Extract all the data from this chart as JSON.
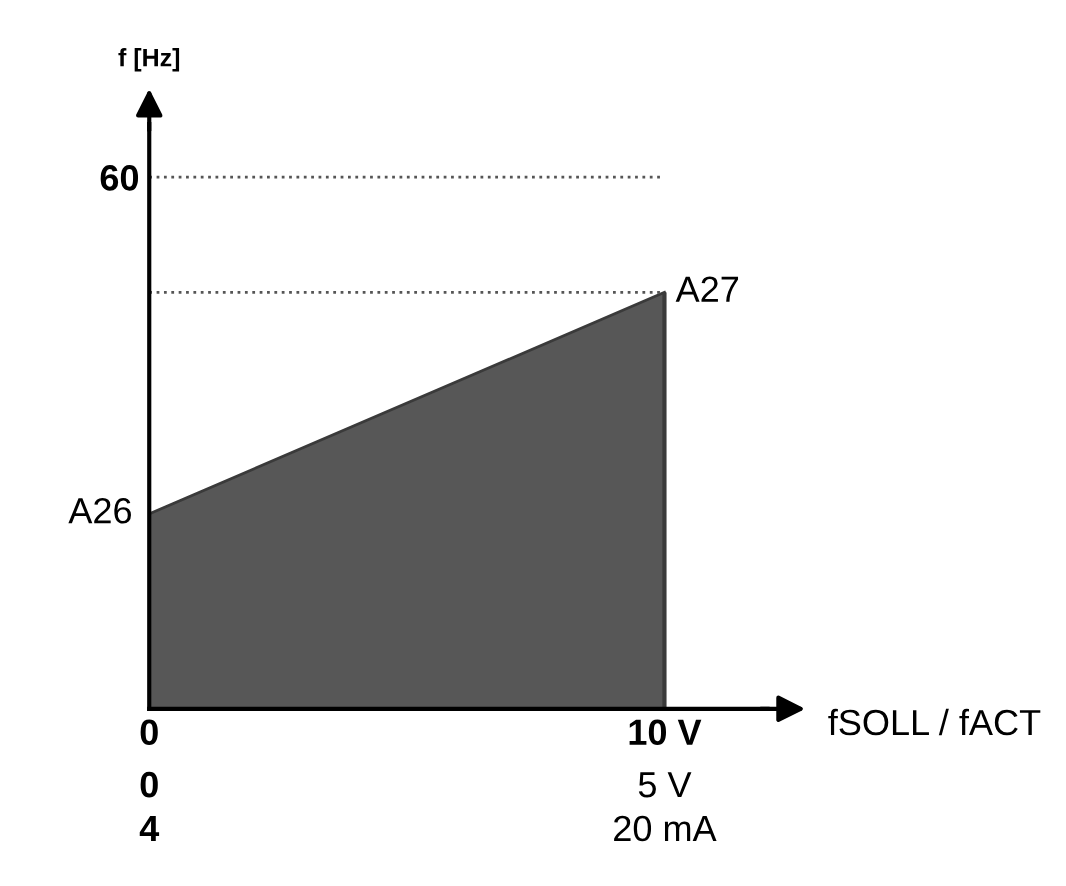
{
  "chart_data": {
    "type": "area",
    "ylabel": "f [Hz]",
    "xlabel": "fSOLL / fACT",
    "x": [
      0,
      10
    ],
    "xlim": [
      0,
      12
    ],
    "xticks": [
      {
        "value": 0,
        "label": "0"
      },
      {
        "value": 10,
        "label": "10 V"
      }
    ],
    "ylim": [
      0,
      66
    ],
    "yticks": [
      60
    ],
    "series": [
      {
        "color": "#3a3a3a",
        "values": [
          22,
          47
        ]
      }
    ],
    "ref_lines": [
      {
        "axis": "y",
        "value": 60,
        "color": "#555555",
        "line_style": "dotted"
      },
      {
        "axis": "y",
        "value": 47,
        "color": "#555555",
        "line_style": "dotted"
      }
    ],
    "annotations": [
      {
        "text": "A26",
        "x": 0,
        "y": 22
      },
      {
        "text": "A27",
        "x": 10,
        "y": 47
      },
      "0",
      "5 V",
      "4",
      "20 mA"
    ],
    "grid": false
  }
}
